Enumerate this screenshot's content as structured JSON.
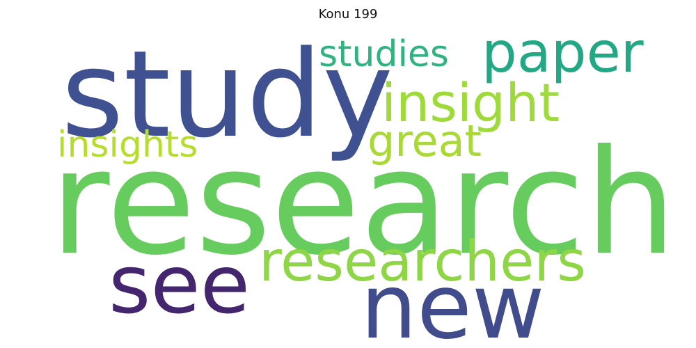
{
  "title": "Konu 199",
  "words": [
    {
      "id": "study",
      "text": "study",
      "color": "#3f5190"
    },
    {
      "id": "research",
      "text": "research",
      "color": "#66cc5e"
    },
    {
      "id": "paper",
      "text": "paper",
      "color": "#22a884"
    },
    {
      "id": "studies",
      "text": "studies",
      "color": "#2fb380"
    },
    {
      "id": "insight",
      "text": "insight",
      "color": "#9dda3a"
    },
    {
      "id": "great",
      "text": "great",
      "color": "#a9da33"
    },
    {
      "id": "insights",
      "text": "insights",
      "color": "#b5de2b"
    },
    {
      "id": "researchers",
      "text": "researchers",
      "color": "#8ed645"
    },
    {
      "id": "see",
      "text": "see",
      "color": "#44266f"
    },
    {
      "id": "new",
      "text": "new",
      "color": "#404c8c"
    }
  ]
}
